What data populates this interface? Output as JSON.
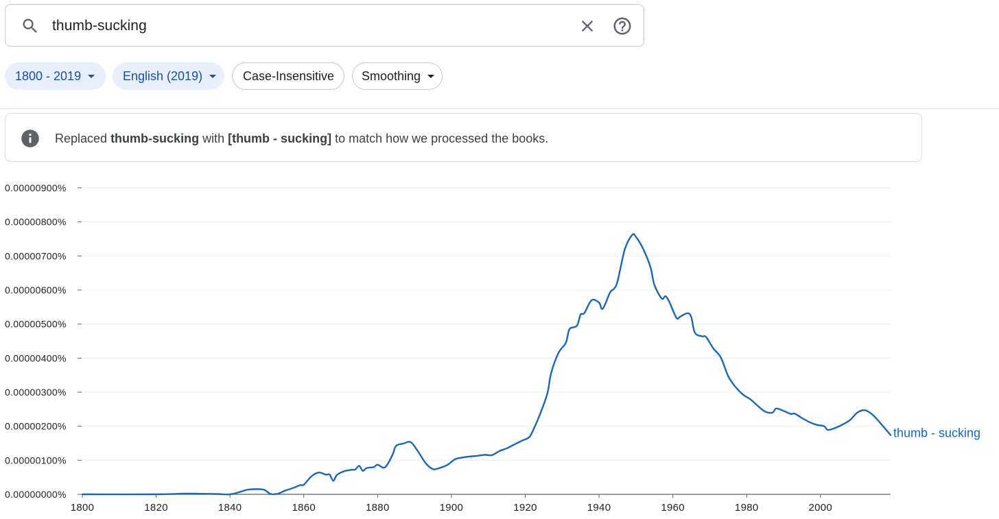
{
  "search": {
    "query": "thumb-sucking",
    "icons": {
      "search": "search-icon",
      "clear": "close-icon",
      "help": "help-circle-icon"
    }
  },
  "filters": {
    "date_range": "1800 - 2019",
    "corpus": "English (2019)",
    "case": "Case-Insensitive",
    "smoothing": "Smoothing"
  },
  "notice": {
    "prefix": "Replaced ",
    "original": "thumb-sucking",
    "middle": " with ",
    "replacement": "[thumb - sucking]",
    "suffix": " to match how we processed the books.",
    "icon": "info-icon"
  },
  "colors": {
    "accent": "#1a67b6",
    "chip_selected_bg": "#e8f0fe",
    "chip_selected_text": "#174ea6"
  },
  "chart_data": {
    "type": "line",
    "title": "",
    "xlabel": "",
    "ylabel": "",
    "xlim": [
      1800,
      2019
    ],
    "ylim": [
      0,
      9e-06
    ],
    "grid": true,
    "legend": "inline-end-label",
    "x_ticks": [
      "1800",
      "1820",
      "1840",
      "1860",
      "1880",
      "1900",
      "1920",
      "1940",
      "1960",
      "1980",
      "2000"
    ],
    "y_ticks": [
      "0.00000000%",
      "0.00000100%",
      "0.00000200%",
      "0.00000300%",
      "0.00000400%",
      "0.00000500%",
      "0.00000600%",
      "0.00000700%",
      "0.00000800%",
      "0.00000900%"
    ],
    "series": [
      {
        "name": "thumb - sucking",
        "color": "#1a67b6",
        "points": [
          [
            1800,
            0
          ],
          [
            1820,
            0
          ],
          [
            1828,
            2e-08
          ],
          [
            1836,
            1e-08
          ],
          [
            1840,
            0
          ],
          [
            1843,
            8e-08
          ],
          [
            1845,
            1.4e-07
          ],
          [
            1849,
            1.4e-07
          ],
          [
            1851,
            1e-08
          ],
          [
            1853,
            2e-08
          ],
          [
            1855,
            1.1e-07
          ],
          [
            1857,
            1.8e-07
          ],
          [
            1859,
            2.7e-07
          ],
          [
            1860,
            2.8e-07
          ],
          [
            1862,
            5.2e-07
          ],
          [
            1864,
            6.4e-07
          ],
          [
            1866,
            5.8e-07
          ],
          [
            1867,
            5.8e-07
          ],
          [
            1868,
            4e-07
          ],
          [
            1869,
            5.7e-07
          ],
          [
            1871,
            6.8e-07
          ],
          [
            1873,
            7.2e-07
          ],
          [
            1874,
            7.3e-07
          ],
          [
            1875,
            8.4e-07
          ],
          [
            1876,
            6.9e-07
          ],
          [
            1877,
            7.7e-07
          ],
          [
            1879,
            8e-07
          ],
          [
            1880,
            8.7e-07
          ],
          [
            1882,
            7.9e-07
          ],
          [
            1884,
            1.15e-06
          ],
          [
            1885,
            1.42e-06
          ],
          [
            1887,
            1.49e-06
          ],
          [
            1889,
            1.53e-06
          ],
          [
            1891,
            1.25e-06
          ],
          [
            1893,
            9.2e-07
          ],
          [
            1895,
            7.4e-07
          ],
          [
            1897,
            7.8e-07
          ],
          [
            1899,
            8.7e-07
          ],
          [
            1901,
            1.03e-06
          ],
          [
            1903,
            1.08e-06
          ],
          [
            1905,
            1.11e-06
          ],
          [
            1907,
            1.13e-06
          ],
          [
            1909,
            1.16e-06
          ],
          [
            1911,
            1.15e-06
          ],
          [
            1913,
            1.27e-06
          ],
          [
            1915,
            1.35e-06
          ],
          [
            1917,
            1.46e-06
          ],
          [
            1919,
            1.57e-06
          ],
          [
            1921,
            1.67e-06
          ],
          [
            1922,
            1.85e-06
          ],
          [
            1924,
            2.35e-06
          ],
          [
            1926,
            2.96e-06
          ],
          [
            1927,
            3.55e-06
          ],
          [
            1929,
            4.15e-06
          ],
          [
            1931,
            4.45e-06
          ],
          [
            1932,
            4.85e-06
          ],
          [
            1934,
            4.95e-06
          ],
          [
            1935,
            5.28e-06
          ],
          [
            1936,
            5.32e-06
          ],
          [
            1938,
            5.7e-06
          ],
          [
            1940,
            5.63e-06
          ],
          [
            1941,
            5.45e-06
          ],
          [
            1943,
            5.93e-06
          ],
          [
            1944,
            6.03e-06
          ],
          [
            1945,
            6.25e-06
          ],
          [
            1947,
            7.2e-06
          ],
          [
            1949,
            7.62e-06
          ],
          [
            1950,
            7.56e-06
          ],
          [
            1952,
            7.2e-06
          ],
          [
            1954,
            6.65e-06
          ],
          [
            1955,
            6.15e-06
          ],
          [
            1957,
            5.75e-06
          ],
          [
            1958,
            5.82e-06
          ],
          [
            1959,
            5.66e-06
          ],
          [
            1961,
            5.18e-06
          ],
          [
            1962,
            5.22e-06
          ],
          [
            1964,
            5.32e-06
          ],
          [
            1965,
            5.2e-06
          ],
          [
            1966,
            4.74e-06
          ],
          [
            1968,
            4.64e-06
          ],
          [
            1969,
            4.62e-06
          ],
          [
            1971,
            4.28e-06
          ],
          [
            1973,
            4.02e-06
          ],
          [
            1975,
            3.47e-06
          ],
          [
            1977,
            3.15e-06
          ],
          [
            1979,
            2.93e-06
          ],
          [
            1981,
            2.79e-06
          ],
          [
            1983,
            2.6e-06
          ],
          [
            1985,
            2.43e-06
          ],
          [
            1987,
            2.4e-06
          ],
          [
            1988,
            2.52e-06
          ],
          [
            1990,
            2.45e-06
          ],
          [
            1992,
            2.36e-06
          ],
          [
            1993,
            2.37e-06
          ],
          [
            1995,
            2.24e-06
          ],
          [
            1997,
            2.12e-06
          ],
          [
            1999,
            2.04e-06
          ],
          [
            2001,
            2e-06
          ],
          [
            2002,
            1.89e-06
          ],
          [
            2004,
            1.95e-06
          ],
          [
            2006,
            2.05e-06
          ],
          [
            2008,
            2.18e-06
          ],
          [
            2010,
            2.4e-06
          ],
          [
            2012,
            2.47e-06
          ],
          [
            2014,
            2.35e-06
          ],
          [
            2016,
            2.12e-06
          ],
          [
            2019,
            1.74e-06
          ]
        ]
      }
    ]
  }
}
